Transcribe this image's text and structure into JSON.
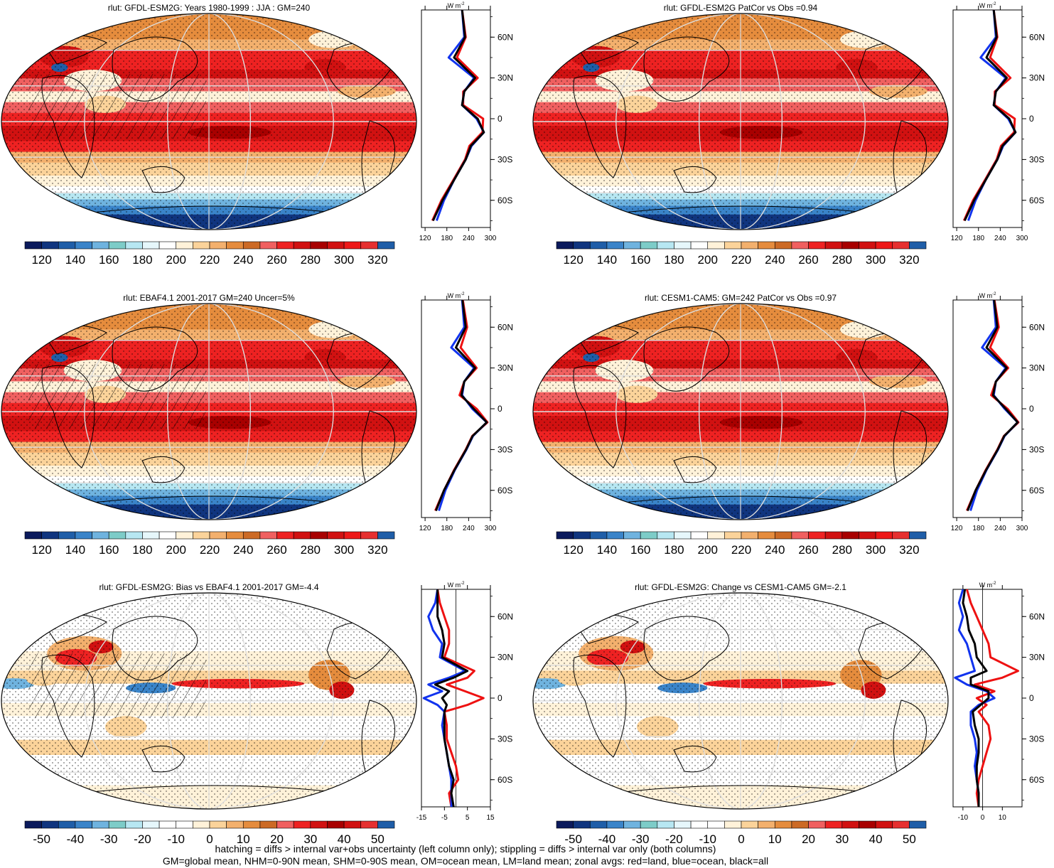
{
  "palette": {
    "full": [
      "#0b1a5c",
      "#10357f",
      "#1f5ea8",
      "#3a84c9",
      "#6fb3df",
      "#7dccc8",
      "#b7e7f2",
      "#e6f7fb",
      "#ffffff",
      "#fff2d9",
      "#fbd39a",
      "#f3b06d",
      "#e58c3d",
      "#cc6a25",
      "#f06060",
      "#ee2222",
      "#d11111",
      "#a80000",
      "#d11111",
      "#ee1818",
      "#e63030",
      "#1f5ea8"
    ],
    "diff": [
      "#0b1a5c",
      "#10357f",
      "#1f5ea8",
      "#3a84c9",
      "#6fb3df",
      "#7dccc8",
      "#b7e7f2",
      "#e6f7fb",
      "#ffffff",
      "#ffffff",
      "#fff2d9",
      "#fbd39a",
      "#f3b06d",
      "#e58c3d",
      "#cc6a25",
      "#f06060",
      "#ee2222",
      "#d11111",
      "#a80000",
      "#d11111",
      "#e63030",
      "#1f5ea8"
    ],
    "land": "#ee1111",
    "ocean": "#1133ee",
    "all": "#000000"
  },
  "chart_data": [
    {
      "type": "heatmap",
      "title": "rlut: GFDL-ESM2G: Years 1980-1999 : JJA : GM=240",
      "kind": "abs",
      "colorbar_labels": [
        "120",
        "140",
        "160",
        "180",
        "200",
        "220",
        "240",
        "260",
        "280",
        "300",
        "320"
      ],
      "zonal": {
        "units": "W m",
        "units_sup": "-2",
        "xlim": [
          110,
          300
        ],
        "xticks": [
          "120",
          "180",
          "240",
          "300"
        ],
        "xtick_values": [
          120,
          180,
          240,
          300
        ],
        "yticks": [
          "60N",
          "30N",
          "0",
          "30S",
          "60S"
        ],
        "ytick_values": [
          60,
          30,
          0,
          -30,
          -60
        ],
        "lat": [
          80,
          60,
          45,
          30,
          20,
          10,
          0,
          -10,
          -20,
          -30,
          -45,
          -60,
          -75
        ],
        "land": [
          222,
          232,
          208,
          265,
          225,
          225,
          280,
          278,
          242,
          230,
          198,
          165,
          140
        ],
        "ocean": [
          222,
          228,
          185,
          255,
          228,
          222,
          262,
          282,
          248,
          232,
          200,
          172,
          152
        ],
        "all": [
          222,
          230,
          200,
          258,
          228,
          222,
          265,
          282,
          246,
          232,
          200,
          168,
          142
        ]
      }
    },
    {
      "type": "heatmap",
      "title": "rlut: GFDL-ESM2G PatCor vs Obs =0.94",
      "kind": "abs",
      "colorbar_labels": [
        "120",
        "140",
        "160",
        "180",
        "200",
        "220",
        "240",
        "260",
        "280",
        "300",
        "320"
      ],
      "zonal": {
        "units": "W m",
        "units_sup": "-2",
        "xlim": [
          110,
          300
        ],
        "xticks": [
          "120",
          "180",
          "240",
          "300"
        ],
        "xtick_values": [
          120,
          180,
          240,
          300
        ],
        "yticks": [
          "60N",
          "30N",
          "0",
          "30S",
          "60S"
        ],
        "ytick_values": [
          60,
          30,
          0,
          -30,
          -60
        ],
        "lat": [
          80,
          60,
          45,
          30,
          20,
          10,
          0,
          -10,
          -20,
          -30,
          -45,
          -60,
          -75
        ],
        "land": [
          222,
          232,
          212,
          268,
          225,
          225,
          280,
          278,
          242,
          230,
          198,
          165,
          140
        ],
        "ocean": [
          222,
          228,
          186,
          255,
          228,
          222,
          262,
          282,
          248,
          232,
          200,
          172,
          152
        ],
        "all": [
          222,
          230,
          202,
          258,
          228,
          222,
          265,
          282,
          246,
          232,
          200,
          168,
          142
        ]
      }
    },
    {
      "type": "heatmap",
      "title": "rlut: EBAF4.1 2001-2017 GM=240 Uncer=5%",
      "kind": "abs",
      "colorbar_labels": [
        "120",
        "140",
        "160",
        "180",
        "200",
        "220",
        "240",
        "260",
        "280",
        "300",
        "320"
      ],
      "zonal": {
        "units": "W m",
        "units_sup": "-2",
        "xlim": [
          110,
          300
        ],
        "xticks": [
          "120",
          "180",
          "240",
          "300"
        ],
        "xtick_values": [
          120,
          180,
          240,
          300
        ],
        "yticks": [
          "60N",
          "30N",
          "0",
          "30S",
          "60S"
        ],
        "ytick_values": [
          60,
          30,
          0,
          -30,
          -60
        ],
        "lat": [
          80,
          60,
          45,
          30,
          20,
          10,
          0,
          -10,
          -20,
          -30,
          -45,
          -60,
          -75
        ],
        "land": [
          224,
          236,
          218,
          262,
          228,
          215,
          262,
          292,
          250,
          232,
          200,
          172,
          148
        ],
        "ocean": [
          222,
          228,
          192,
          255,
          228,
          222,
          250,
          290,
          252,
          234,
          202,
          176,
          158
        ],
        "all": [
          223,
          232,
          205,
          258,
          228,
          220,
          254,
          290,
          251,
          233,
          201,
          172,
          150
        ]
      }
    },
    {
      "type": "heatmap",
      "title": "rlut: CESM1-CAM5: GM=242 PatCor vs Obs =0.97",
      "kind": "abs",
      "colorbar_labels": [
        "120",
        "140",
        "160",
        "180",
        "200",
        "220",
        "240",
        "260",
        "280",
        "300",
        "320"
      ],
      "zonal": {
        "units": "W m",
        "units_sup": "-2",
        "xlim": [
          110,
          300
        ],
        "xticks": [
          "120",
          "180",
          "240",
          "300"
        ],
        "xtick_values": [
          120,
          180,
          240,
          300
        ],
        "yticks": [
          "60N",
          "30N",
          "0",
          "30S",
          "60S"
        ],
        "ytick_values": [
          60,
          30,
          0,
          -30,
          -60
        ],
        "lat": [
          80,
          60,
          45,
          30,
          20,
          10,
          0,
          -10,
          -20,
          -30,
          -45,
          -60,
          -75
        ],
        "land": [
          224,
          236,
          212,
          262,
          228,
          215,
          260,
          290,
          250,
          232,
          200,
          172,
          148
        ],
        "ocean": [
          222,
          228,
          190,
          255,
          228,
          222,
          252,
          288,
          252,
          234,
          202,
          176,
          158
        ],
        "all": [
          223,
          232,
          202,
          258,
          228,
          220,
          255,
          288,
          251,
          233,
          201,
          172,
          150
        ]
      }
    },
    {
      "type": "heatmap",
      "title": "rlut: GFDL-ESM2G: Bias vs EBAF4.1 2001-2017 GM=-4.4",
      "kind": "diff",
      "colorbar_labels": [
        "-50",
        "-40",
        "-30",
        "-20",
        "-10",
        "0",
        "10",
        "20",
        "30",
        "40",
        "50"
      ],
      "zonal": {
        "units": "W m",
        "units_sup": "-2",
        "xlim": [
          -15,
          15
        ],
        "xticks": [
          "-15",
          "-5",
          "5",
          "15"
        ],
        "xtick_values": [
          -15,
          -5,
          5,
          15
        ],
        "yticks": [
          "60N",
          "30N",
          "0",
          "30S",
          "60S"
        ],
        "ytick_values": [
          60,
          30,
          0,
          -30,
          -60
        ],
        "lat": [
          80,
          70,
          60,
          50,
          40,
          30,
          20,
          15,
          10,
          5,
          0,
          -5,
          -10,
          -20,
          -30,
          -40,
          -50,
          -60,
          -70,
          -80
        ],
        "land": [
          -8,
          -7,
          -5,
          -3,
          -3,
          -5,
          8,
          5,
          -4,
          4,
          12,
          5,
          -5,
          -4,
          -4,
          -2,
          0,
          1,
          -3,
          -2
        ],
        "ocean": [
          -8,
          -9,
          -12,
          -10,
          -6,
          -7,
          4,
          -3,
          -12,
          -6,
          -14,
          -8,
          -5,
          -6,
          -5,
          -4,
          -3,
          -2,
          -2,
          -2
        ],
        "all": [
          -8,
          -8,
          -8,
          -6,
          -5,
          -6,
          5,
          -1,
          -9,
          -3,
          -6,
          -4,
          -5,
          -5,
          -5,
          -4,
          -3,
          -1,
          -2,
          -1
        ]
      }
    },
    {
      "type": "heatmap",
      "title": "rlut: GFDL-ESM2G: Change vs CESM1-CAM5 GM=-2.1",
      "kind": "diff",
      "colorbar_labels": [
        "-50",
        "-40",
        "-30",
        "-20",
        "-10",
        "0",
        "10",
        "20",
        "30",
        "40",
        "50"
      ],
      "zonal": {
        "units": "W m",
        "units_sup": "-2",
        "xlim": [
          -15,
          20
        ],
        "xticks": [
          "-10",
          "0",
          "10"
        ],
        "xtick_values": [
          -10,
          0,
          10
        ],
        "yticks": [
          "60N",
          "30N",
          "0",
          "30S",
          "60S"
        ],
        "ytick_values": [
          60,
          30,
          0,
          -30,
          -60
        ],
        "lat": [
          80,
          70,
          60,
          50,
          40,
          30,
          20,
          15,
          10,
          5,
          0,
          -5,
          -10,
          -20,
          -30,
          -40,
          -50,
          -60,
          -70,
          -80
        ],
        "land": [
          -8,
          -6,
          -3,
          0,
          3,
          4,
          18,
          10,
          -4,
          6,
          -3,
          2,
          -2,
          3,
          4,
          2,
          0,
          -2,
          -3,
          -2
        ],
        "ocean": [
          -10,
          -12,
          -10,
          -12,
          -8,
          -6,
          -4,
          -14,
          -8,
          2,
          6,
          -2,
          -6,
          -6,
          -4,
          -3,
          -4,
          -3,
          -2,
          -2
        ],
        "all": [
          -9,
          -10,
          -8,
          -7,
          -4,
          -3,
          2,
          -6,
          -6,
          3,
          3,
          -1,
          -5,
          -4,
          -2,
          -2,
          -3,
          -3,
          -2,
          -2
        ]
      }
    }
  ],
  "footer": {
    "line1": "hatching = diffs > internal var+obs uncertainty (left column only); stippling = diffs > internal var only (both columns)",
    "line2": "GM=global mean, NHM=0-90N mean, SHM=0-90S mean, OM=ocean mean, LM=land mean; zonal avgs: red=land, blue=ocean, black=all"
  }
}
